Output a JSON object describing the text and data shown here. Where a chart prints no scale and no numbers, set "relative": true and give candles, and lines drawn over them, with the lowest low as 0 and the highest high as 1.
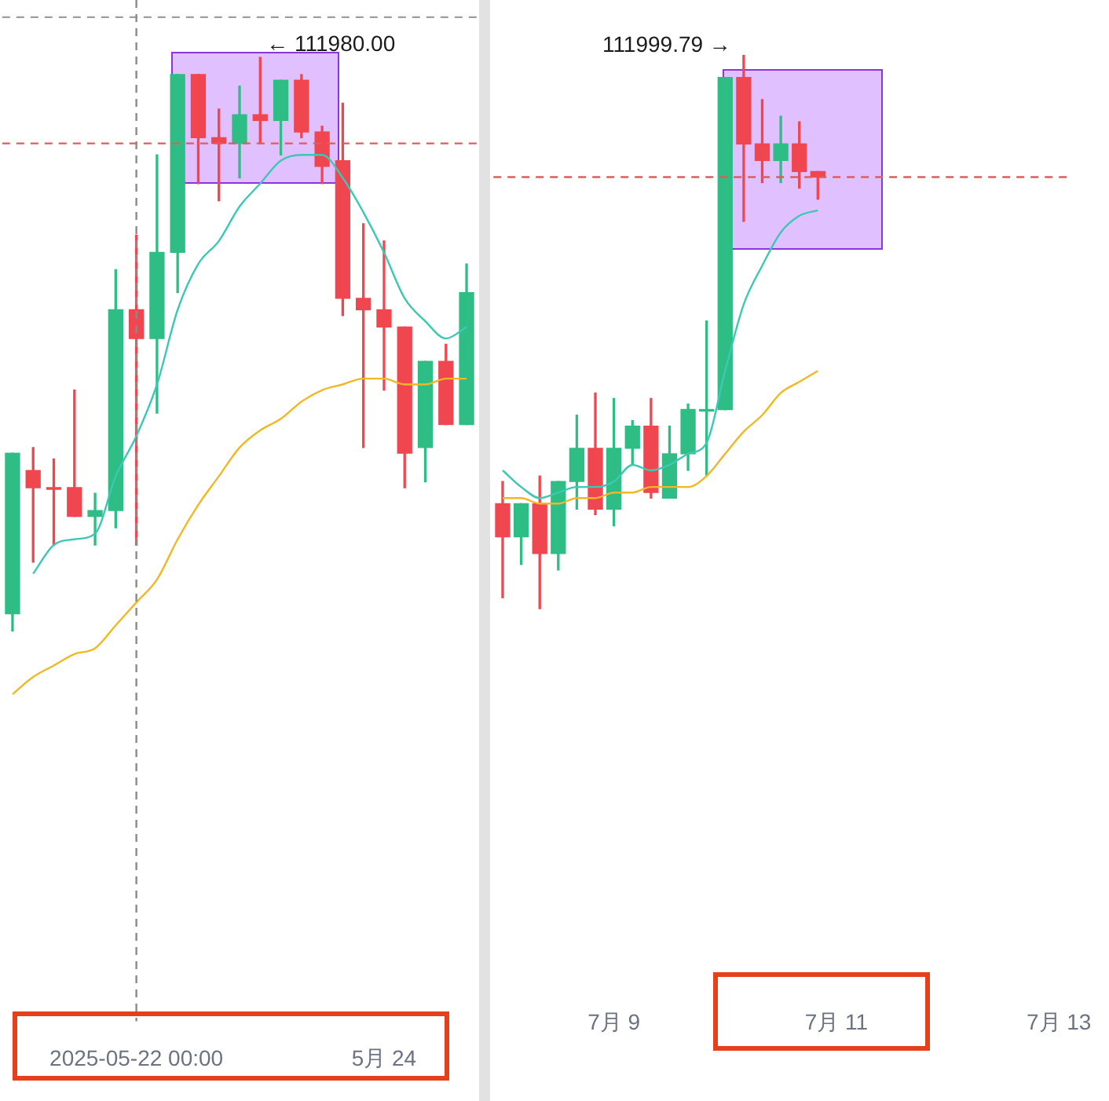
{
  "chart_data": [
    {
      "type": "candlestick",
      "relative": true,
      "categories": [
        null,
        null,
        null,
        null,
        null,
        null,
        "2025-05-22 00:00",
        null,
        null,
        null,
        null,
        null,
        null,
        null,
        null,
        null,
        null,
        null,
        "5月 24",
        null,
        null,
        null,
        null
      ],
      "ohlc": [
        [
          0.03,
          0.31,
          0,
          0.31
        ],
        [
          0.28,
          0.32,
          0.12,
          0.25
        ],
        [
          0.25,
          0.3,
          0.15,
          0.25
        ],
        [
          0.25,
          0.42,
          0.2,
          0.2
        ],
        [
          0.2,
          0.24,
          0.15,
          0.21
        ],
        [
          0.21,
          0.63,
          0.18,
          0.56
        ],
        [
          0.56,
          0.69,
          0.15,
          0.51
        ],
        [
          0.51,
          0.83,
          0.38,
          0.66
        ],
        [
          0.66,
          0.97,
          0.59,
          0.97
        ],
        [
          0.97,
          0.97,
          0.78,
          0.86
        ],
        [
          0.86,
          0.91,
          0.75,
          0.85
        ],
        [
          0.85,
          0.95,
          0.79,
          0.9
        ],
        [
          0.9,
          1,
          0.85,
          0.89
        ],
        [
          0.89,
          0.96,
          0.83,
          0.96
        ],
        [
          0.96,
          0.97,
          0.86,
          0.87
        ],
        [
          0.87,
          0.88,
          0.78,
          0.81
        ],
        [
          0.82,
          0.92,
          0.55,
          0.58
        ],
        [
          0.58,
          0.71,
          0.32,
          0.56
        ],
        [
          0.56,
          0.68,
          0.42,
          0.53
        ],
        [
          0.53,
          0.53,
          0.25,
          0.31
        ],
        [
          0.32,
          0.47,
          0.26,
          0.47
        ],
        [
          0.47,
          0.5,
          0.36,
          0.36
        ],
        [
          0.36,
          0.64,
          0.36,
          0.59
        ]
      ],
      "colors": [
        "#2ebd85",
        "#f0464f",
        "#f0464f",
        "#f0464f",
        "#2ebd85",
        "#2ebd85",
        "#f0464f",
        "#2ebd85",
        "#2ebd85",
        "#f0464f",
        "#f0464f",
        "#2ebd85",
        "#f0464f",
        "#2ebd85",
        "#f0464f",
        "#f0464f",
        "#f0464f",
        "#f0464f",
        "#f0464f",
        "#f0464f",
        "#2ebd85",
        "#f0464f",
        "#2ebd85"
      ],
      "series": [
        {
          "type": "line",
          "color": "#3cc8b4",
          "values": [
            null,
            0.1,
            0.15,
            0.16,
            0.17,
            0.27,
            0.34,
            0.43,
            0.56,
            0.64,
            0.68,
            0.74,
            0.78,
            0.82,
            0.83,
            0.83,
            0.79,
            0.73,
            0.66,
            0.58,
            0.54,
            0.51,
            0.53
          ]
        },
        {
          "type": "line",
          "color": "#f2b824",
          "values": [
            -0.11,
            -0.08,
            -0.06,
            -0.04,
            -0.03,
            0.01,
            0.05,
            0.09,
            0.16,
            0.22,
            0.27,
            0.32,
            0.35,
            0.37,
            0.4,
            0.42,
            0.43,
            0.44,
            0.44,
            0.43,
            0.43,
            0.44,
            0.44
          ]
        }
      ],
      "ref_lines": [
        {
          "axis": "y",
          "value": 0.85,
          "color": "#e05c5c",
          "line_style": "dashed"
        },
        {
          "axis": "y",
          "value": 1.07,
          "color": "#9e9e9e",
          "line_style": "dashed"
        },
        {
          "axis": "x",
          "value": "2025-05-22 00:00",
          "color": "#8a8a8a",
          "line_style": "dashed"
        }
      ],
      "annotations": [
        "← 111980.00"
      ],
      "legend": false
    },
    {
      "type": "candlestick",
      "relative": true,
      "categories": [
        null,
        null,
        null,
        null,
        null,
        null,
        "7月 9",
        null,
        null,
        null,
        null,
        null,
        null,
        null,
        null,
        null,
        null,
        null,
        "7月 11",
        null,
        null,
        null,
        null,
        null,
        null,
        null,
        null,
        null,
        null,
        null,
        "7月 13"
      ],
      "ohlc": [
        [
          0.19,
          0.23,
          0.02,
          0.13
        ],
        [
          0.13,
          0.19,
          0.08,
          0.19
        ],
        [
          0.19,
          0.24,
          0,
          0.1
        ],
        [
          0.1,
          0.23,
          0.07,
          0.23
        ],
        [
          0.23,
          0.35,
          0.18,
          0.29
        ],
        [
          0.29,
          0.39,
          0.17,
          0.18
        ],
        [
          0.18,
          0.38,
          0.15,
          0.29
        ],
        [
          0.29,
          0.34,
          0.26,
          0.33
        ],
        [
          0.33,
          0.38,
          0.2,
          0.21
        ],
        [
          0.2,
          0.33,
          0.2,
          0.28
        ],
        [
          0.28,
          0.37,
          0.25,
          0.36
        ],
        [
          0.36,
          0.52,
          0.24,
          0.36
        ],
        [
          0.36,
          0.96,
          0.36,
          0.96
        ],
        [
          0.96,
          1,
          0.7,
          0.84
        ],
        [
          0.84,
          0.92,
          0.77,
          0.81
        ],
        [
          0.81,
          0.89,
          0.77,
          0.84
        ],
        [
          0.84,
          0.88,
          0.76,
          0.79
        ],
        [
          0.79,
          0.79,
          0.74,
          0.78
        ],
        null,
        null,
        null,
        null,
        null,
        null,
        null,
        null,
        null,
        null,
        null,
        null,
        null
      ],
      "colors": [
        "#f0464f",
        "#2ebd85",
        "#f0464f",
        "#2ebd85",
        "#2ebd85",
        "#f0464f",
        "#2ebd85",
        "#2ebd85",
        "#f0464f",
        "#2ebd85",
        "#2ebd85",
        "#2ebd85",
        "#2ebd85",
        "#f0464f",
        "#f0464f",
        "#2ebd85",
        "#f0464f",
        "#f0464f",
        null,
        null,
        null,
        null,
        null,
        null,
        null,
        null,
        null,
        null,
        null,
        null,
        null
      ],
      "series": [
        {
          "type": "line",
          "color": "#3cc8b4",
          "values": [
            0.25,
            0.22,
            0.2,
            0.21,
            0.22,
            0.22,
            0.23,
            0.26,
            0.25,
            0.26,
            0.28,
            0.3,
            0.43,
            0.55,
            0.62,
            0.68,
            0.71,
            0.72,
            null,
            null,
            null,
            null,
            null,
            null,
            null,
            null,
            null,
            null,
            null,
            null,
            null
          ]
        },
        {
          "type": "line",
          "color": "#f2b824",
          "values": [
            0.2,
            0.2,
            0.19,
            0.19,
            0.2,
            0.2,
            0.21,
            0.21,
            0.22,
            0.22,
            0.22,
            0.24,
            0.28,
            0.32,
            0.35,
            0.39,
            0.41,
            0.43,
            null,
            null,
            null,
            null,
            null,
            null,
            null,
            null,
            null,
            null,
            null,
            null,
            null
          ]
        }
      ],
      "ref_lines": [
        {
          "axis": "y",
          "value": 0.78,
          "color": "#e05c5c",
          "line_style": "dashed"
        }
      ],
      "annotations": [
        "111999.79 →"
      ],
      "legend": false
    }
  ]
}
